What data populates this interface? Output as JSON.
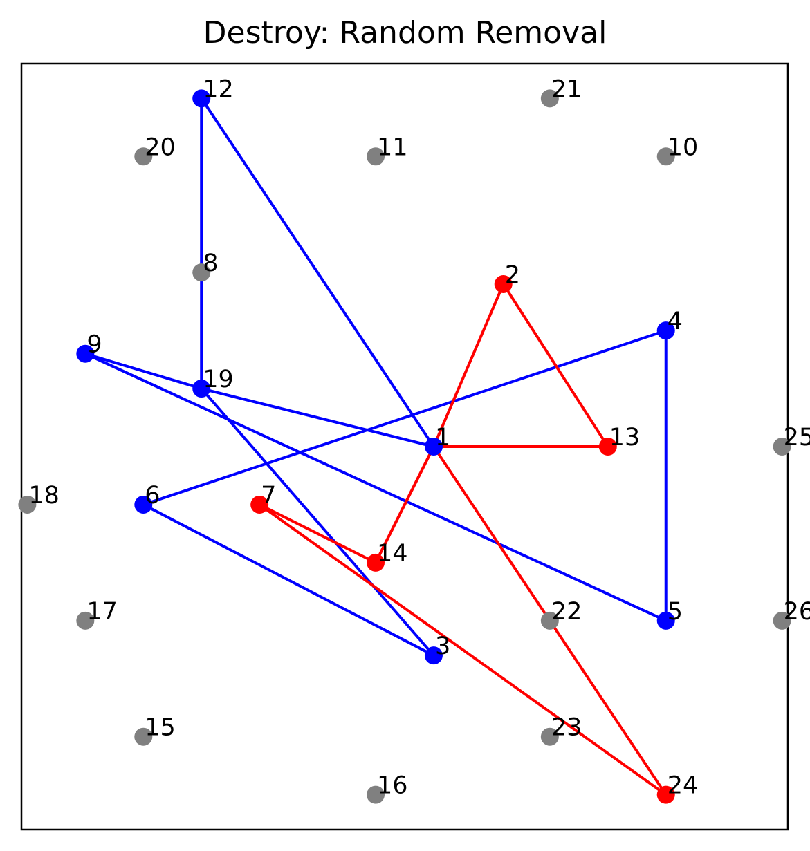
{
  "chart_data": {
    "type": "scatter",
    "title": "Destroy: Random Removal",
    "xlabel": "",
    "ylabel": "",
    "grid": false,
    "xlim": [
      -1.1,
      12.1
    ],
    "ylim": [
      -0.6,
      12.6
    ],
    "colors": {
      "route_a": "#0000ff",
      "route_b": "#ff0000",
      "removed": "#808080"
    },
    "nodes": [
      {
        "id": "1",
        "x": 6,
        "y": 6,
        "group": "route_a"
      },
      {
        "id": "2",
        "x": 7.2,
        "y": 8.8,
        "group": "route_b"
      },
      {
        "id": "3",
        "x": 6,
        "y": 2.4,
        "group": "route_a"
      },
      {
        "id": "4",
        "x": 10,
        "y": 8.0,
        "group": "route_a"
      },
      {
        "id": "5",
        "x": 10,
        "y": 3,
        "group": "route_a"
      },
      {
        "id": "6",
        "x": 1,
        "y": 5,
        "group": "route_a"
      },
      {
        "id": "7",
        "x": 3.0,
        "y": 5,
        "group": "route_b"
      },
      {
        "id": "8",
        "x": 2,
        "y": 9,
        "group": "removed"
      },
      {
        "id": "9",
        "x": 0,
        "y": 7.6,
        "group": "route_a"
      },
      {
        "id": "10",
        "x": 10,
        "y": 11,
        "group": "removed"
      },
      {
        "id": "11",
        "x": 5,
        "y": 11,
        "group": "removed"
      },
      {
        "id": "12",
        "x": 2,
        "y": 12,
        "group": "route_a"
      },
      {
        "id": "13",
        "x": 9,
        "y": 6,
        "group": "route_b"
      },
      {
        "id": "14",
        "x": 5,
        "y": 4,
        "group": "route_b"
      },
      {
        "id": "15",
        "x": 1,
        "y": 1,
        "group": "removed"
      },
      {
        "id": "16",
        "x": 5,
        "y": 0,
        "group": "removed"
      },
      {
        "id": "17",
        "x": 0,
        "y": 3,
        "group": "removed"
      },
      {
        "id": "18",
        "x": -1,
        "y": 5,
        "group": "removed"
      },
      {
        "id": "19",
        "x": 2,
        "y": 7,
        "group": "route_a"
      },
      {
        "id": "20",
        "x": 1,
        "y": 11,
        "group": "removed"
      },
      {
        "id": "21",
        "x": 8,
        "y": 12,
        "group": "removed"
      },
      {
        "id": "22",
        "x": 8,
        "y": 3,
        "group": "removed"
      },
      {
        "id": "23",
        "x": 8,
        "y": 1,
        "group": "removed"
      },
      {
        "id": "24",
        "x": 10,
        "y": 0,
        "group": "route_b"
      },
      {
        "id": "25",
        "x": 12,
        "y": 6,
        "group": "removed"
      },
      {
        "id": "26",
        "x": 12,
        "y": 3,
        "group": "removed"
      }
    ],
    "routes": [
      {
        "group": "route_a",
        "path": [
          "1",
          "12",
          "19",
          "1"
        ]
      },
      {
        "group": "route_a",
        "path": [
          "9",
          "19",
          "3",
          "6",
          "4",
          "5",
          "9"
        ]
      },
      {
        "group": "route_b",
        "path": [
          "1",
          "2",
          "13",
          "1",
          "14",
          "1",
          "24",
          "7",
          "14"
        ]
      }
    ]
  }
}
